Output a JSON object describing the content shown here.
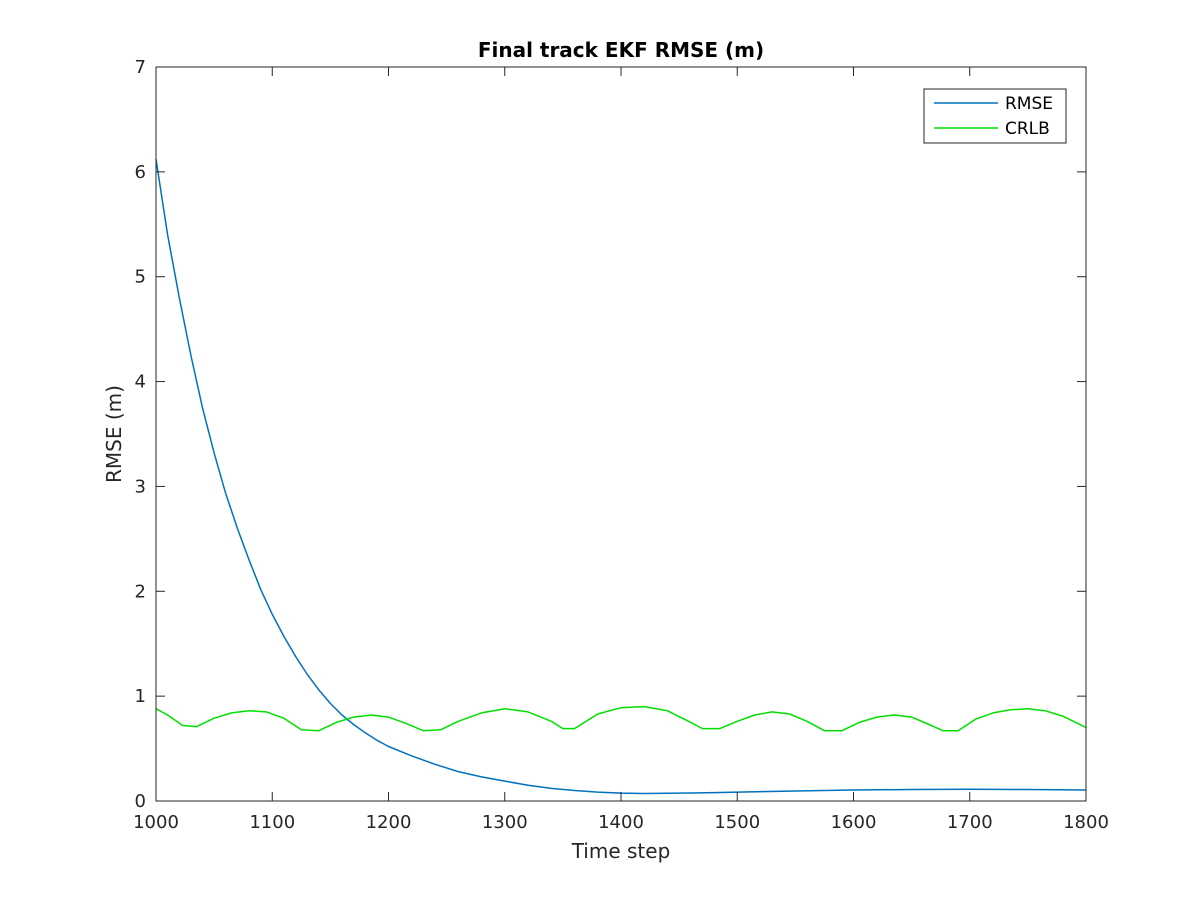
{
  "chart_data": {
    "type": "line",
    "title": "Final track EKF RMSE (m)",
    "xlabel": "Time step",
    "ylabel": "RMSE (m)",
    "xlim": [
      1000,
      1800
    ],
    "ylim": [
      0,
      7
    ],
    "xticks": [
      1000,
      1100,
      1200,
      1300,
      1400,
      1500,
      1600,
      1700,
      1800
    ],
    "yticks": [
      0,
      1,
      2,
      3,
      4,
      5,
      6,
      7
    ],
    "grid": false,
    "legend_position": "top-right",
    "series": [
      {
        "name": "RMSE",
        "color": "#0072BD",
        "x": [
          1000,
          1010,
          1020,
          1030,
          1040,
          1050,
          1060,
          1070,
          1080,
          1090,
          1100,
          1110,
          1120,
          1130,
          1140,
          1150,
          1160,
          1170,
          1180,
          1190,
          1200,
          1220,
          1240,
          1260,
          1280,
          1300,
          1320,
          1340,
          1360,
          1380,
          1400,
          1420,
          1440,
          1460,
          1480,
          1500,
          1550,
          1600,
          1650,
          1700,
          1750,
          1800
        ],
        "y": [
          6.12,
          5.4,
          4.8,
          4.25,
          3.75,
          3.32,
          2.93,
          2.6,
          2.3,
          2.02,
          1.78,
          1.57,
          1.38,
          1.21,
          1.06,
          0.93,
          0.82,
          0.73,
          0.65,
          0.58,
          0.52,
          0.43,
          0.35,
          0.28,
          0.23,
          0.19,
          0.15,
          0.12,
          0.1,
          0.085,
          0.075,
          0.072,
          0.073,
          0.076,
          0.08,
          0.085,
          0.095,
          0.105,
          0.11,
          0.112,
          0.11,
          0.105
        ]
      },
      {
        "name": "CRLB",
        "color": "#00E000",
        "x": [
          1000,
          1010,
          1023,
          1035,
          1050,
          1065,
          1080,
          1095,
          1110,
          1125,
          1140,
          1155,
          1170,
          1185,
          1200,
          1215,
          1230,
          1245,
          1260,
          1280,
          1300,
          1320,
          1340,
          1350,
          1360,
          1380,
          1400,
          1420,
          1440,
          1460,
          1470,
          1485,
          1500,
          1515,
          1530,
          1545,
          1560,
          1575,
          1590,
          1605,
          1620,
          1635,
          1650,
          1665,
          1677,
          1690,
          1705,
          1720,
          1735,
          1750,
          1765,
          1780,
          1800
        ],
        "y": [
          0.88,
          0.82,
          0.72,
          0.71,
          0.79,
          0.84,
          0.86,
          0.85,
          0.79,
          0.68,
          0.67,
          0.75,
          0.8,
          0.82,
          0.8,
          0.74,
          0.67,
          0.68,
          0.76,
          0.84,
          0.88,
          0.85,
          0.76,
          0.69,
          0.69,
          0.83,
          0.89,
          0.9,
          0.86,
          0.75,
          0.69,
          0.69,
          0.76,
          0.82,
          0.85,
          0.83,
          0.76,
          0.67,
          0.67,
          0.75,
          0.8,
          0.82,
          0.8,
          0.73,
          0.67,
          0.67,
          0.78,
          0.84,
          0.87,
          0.88,
          0.86,
          0.81,
          0.7
        ]
      }
    ]
  }
}
